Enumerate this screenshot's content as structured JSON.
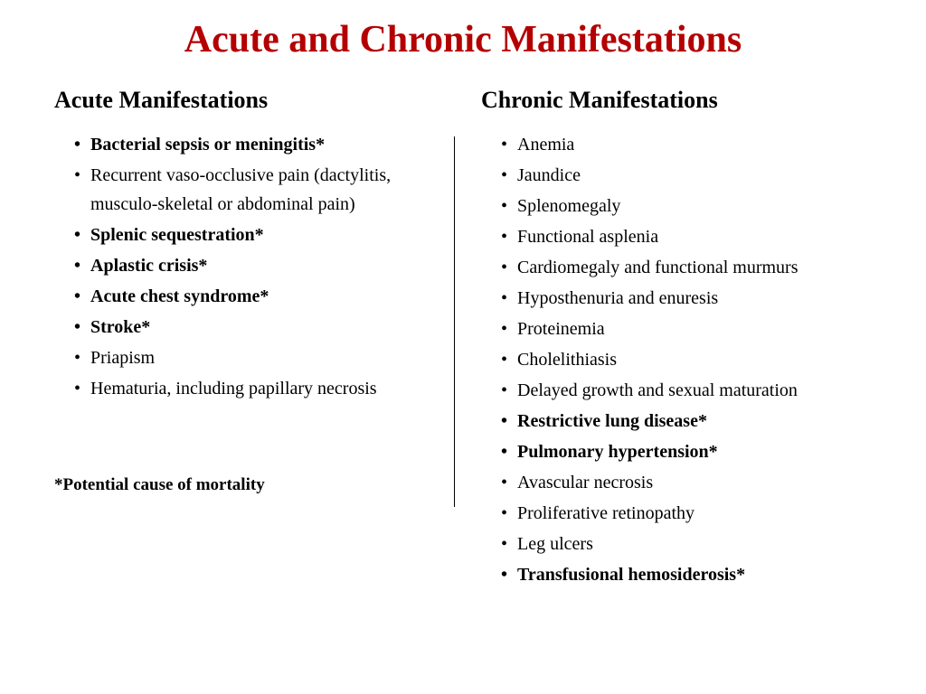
{
  "title": "Acute and Chronic Manifestations",
  "title_color": "#b40000",
  "text_color": "#000000",
  "background_color": "#ffffff",
  "left": {
    "heading": "Acute Manifestations",
    "items": [
      {
        "text": "Bacterial sepsis or meningitis*",
        "bold": true
      },
      {
        "text": "Recurrent vaso-occlusive pain (dactylitis, musculo-skeletal or abdominal pain)",
        "bold": false
      },
      {
        "text": "Splenic sequestration*",
        "bold": true
      },
      {
        "text": "Aplastic crisis*",
        "bold": true
      },
      {
        "text": "Acute chest syndrome*",
        "bold": true
      },
      {
        "text": "Stroke*",
        "bold": true
      },
      {
        "text": "Priapism",
        "bold": false
      },
      {
        "text": "Hematuria, including papillary necrosis",
        "bold": false
      }
    ],
    "footnote": "*Potential cause of mortality"
  },
  "right": {
    "heading": "Chronic Manifestations",
    "items": [
      {
        "text": "Anemia",
        "bold": false
      },
      {
        "text": "Jaundice",
        "bold": false
      },
      {
        "text": "Splenomegaly",
        "bold": false
      },
      {
        "text": "Functional asplenia",
        "bold": false
      },
      {
        "text": "Cardiomegaly and functional murmurs",
        "bold": false
      },
      {
        "text": "Hyposthenuria and enuresis",
        "bold": false
      },
      {
        "text": "Proteinemia",
        "bold": false
      },
      {
        "text": "Cholelithiasis",
        "bold": false
      },
      {
        "text": "Delayed growth and sexual maturation",
        "bold": false
      },
      {
        "text": "Restrictive lung disease*",
        "bold": true
      },
      {
        "text": "Pulmonary hypertension*",
        "bold": true
      },
      {
        "text": "Avascular necrosis",
        "bold": false
      },
      {
        "text": "Proliferative retinopathy",
        "bold": false
      },
      {
        "text": "Leg ulcers",
        "bold": false
      },
      {
        "text": "Transfusional hemosiderosis*",
        "bold": true
      }
    ]
  }
}
